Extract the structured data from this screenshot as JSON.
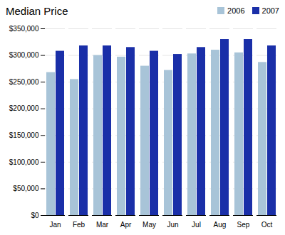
{
  "chart_data": {
    "type": "bar",
    "title": "Median Price",
    "categories": [
      "Jan",
      "Feb",
      "Mar",
      "Apr",
      "May",
      "Jun",
      "Jul",
      "Aug",
      "Sep",
      "Oct"
    ],
    "series": [
      {
        "name": "2006",
        "color": "#A8C4D8",
        "values": [
          268000,
          255000,
          300000,
          297000,
          280000,
          272000,
          303000,
          310000,
          305000,
          287000
        ]
      },
      {
        "name": "2007",
        "color": "#1A2FA8",
        "values": [
          308000,
          318000,
          318000,
          315000,
          308000,
          302000,
          315000,
          330000,
          330000,
          318000
        ]
      }
    ],
    "ylim": [
      0,
      350000
    ],
    "yticks": [
      {
        "value": 0,
        "label": "$0"
      },
      {
        "value": 50000,
        "label": "$50,000"
      },
      {
        "value": 100000,
        "label": "$100,000"
      },
      {
        "value": 150000,
        "label": "$150,000"
      },
      {
        "value": 200000,
        "label": "$200,000"
      },
      {
        "value": 250000,
        "label": "$250,000"
      },
      {
        "value": 300000,
        "label": "$300,000"
      },
      {
        "value": 350000,
        "label": "$350,000"
      }
    ],
    "grid": true,
    "legend": "upper right"
  }
}
